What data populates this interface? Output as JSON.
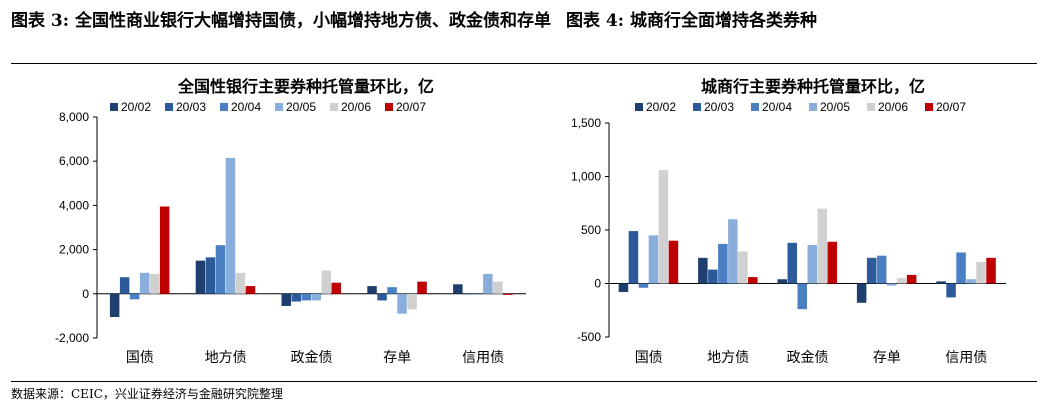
{
  "header": {
    "left": "图表 3: 全国性商业银行大幅增持国债，小幅增持地方债、政金债和存单",
    "right": "图表 4:  城商行全面增持各类券种"
  },
  "footer": {
    "source": "数据来源：CEIC，兴业证券经济与金融研究院整理"
  },
  "chart_data": [
    {
      "type": "bar",
      "title": "全国性银行主要券种托管量环比，亿",
      "xlabel": "",
      "ylabel": "",
      "categories": [
        "国债",
        "地方债",
        "政金债",
        "存单",
        "信用债"
      ],
      "ylim": [
        -2000,
        8000
      ],
      "yticks": [
        -2000,
        0,
        2000,
        4000,
        6000,
        8000
      ],
      "ytick_labels": [
        "-2,000",
        "0",
        "2,000",
        "4,000",
        "6,000",
        "8,000"
      ],
      "legend_position": "top",
      "grid": false,
      "series": [
        {
          "name": "20/02",
          "color": "#1f3f6e",
          "values": [
            -1050,
            1500,
            -550,
            350,
            430
          ]
        },
        {
          "name": "20/03",
          "color": "#2d5a9b",
          "values": [
            750,
            1650,
            -350,
            -300,
            0
          ]
        },
        {
          "name": "20/04",
          "color": "#4a7fc4",
          "values": [
            -250,
            2200,
            -300,
            300,
            0
          ]
        },
        {
          "name": "20/05",
          "color": "#8aaedc",
          "values": [
            950,
            6150,
            -300,
            -900,
            900
          ]
        },
        {
          "name": "20/06",
          "color": "#d0d0d0",
          "values": [
            900,
            950,
            1050,
            -700,
            550
          ]
        },
        {
          "name": "20/07",
          "color": "#c00000",
          "values": [
            3950,
            350,
            500,
            550,
            -50
          ]
        }
      ]
    },
    {
      "type": "bar",
      "title": "城商行主要券种托管量环比，亿",
      "xlabel": "",
      "ylabel": "",
      "categories": [
        "国债",
        "地方债",
        "政金债",
        "存单",
        "信用债"
      ],
      "ylim": [
        -500,
        1500
      ],
      "yticks": [
        -500,
        0,
        500,
        1000,
        1500
      ],
      "ytick_labels": [
        "-500",
        "0",
        "500",
        "1,000",
        "1,500"
      ],
      "legend_position": "top",
      "grid": false,
      "series": [
        {
          "name": "20/02",
          "color": "#1f3f6e",
          "values": [
            -80,
            240,
            40,
            -180,
            20
          ]
        },
        {
          "name": "20/03",
          "color": "#2d5a9b",
          "values": [
            490,
            130,
            380,
            240,
            -130
          ]
        },
        {
          "name": "20/04",
          "color": "#4a7fc4",
          "values": [
            -40,
            370,
            -240,
            260,
            290
          ]
        },
        {
          "name": "20/05",
          "color": "#8aaedc",
          "values": [
            450,
            600,
            360,
            -20,
            40
          ]
        },
        {
          "name": "20/06",
          "color": "#d0d0d0",
          "values": [
            1060,
            300,
            700,
            50,
            200
          ]
        },
        {
          "name": "20/07",
          "color": "#c00000",
          "values": [
            400,
            60,
            390,
            80,
            240
          ]
        }
      ]
    }
  ]
}
